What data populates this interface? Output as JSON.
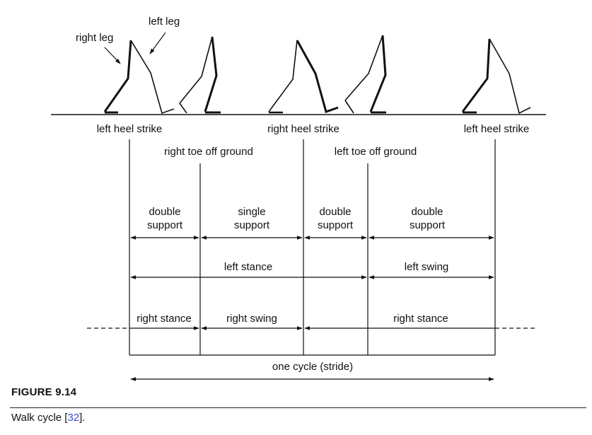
{
  "figure": {
    "label": "FIGURE 9.14",
    "caption_text": "Walk cycle [",
    "caption_ref": "32",
    "caption_end": "]."
  },
  "figures": {
    "right_leg_label": "right leg",
    "left_leg_label": "left leg"
  },
  "events": {
    "left_heel_strike_1": "left heel strike",
    "right_heel_strike": "right heel strike",
    "left_heel_strike_2": "left heel strike",
    "right_toe_off": "right toe off ground",
    "left_toe_off": "left toe off ground"
  },
  "support_phases": {
    "p1_line1": "double",
    "p1_line2": "support",
    "p2_line1": "single",
    "p2_line2": "support",
    "p3_line1": "double",
    "p3_line2": "support",
    "p4_line1": "double",
    "p4_line2": "support"
  },
  "left_leg": {
    "stance": "left stance",
    "swing": "left swing"
  },
  "right_leg": {
    "stance_1": "right stance",
    "swing": "right swing",
    "stance_2": "right stance"
  },
  "cycle": {
    "label": "one cycle (stride)"
  }
}
